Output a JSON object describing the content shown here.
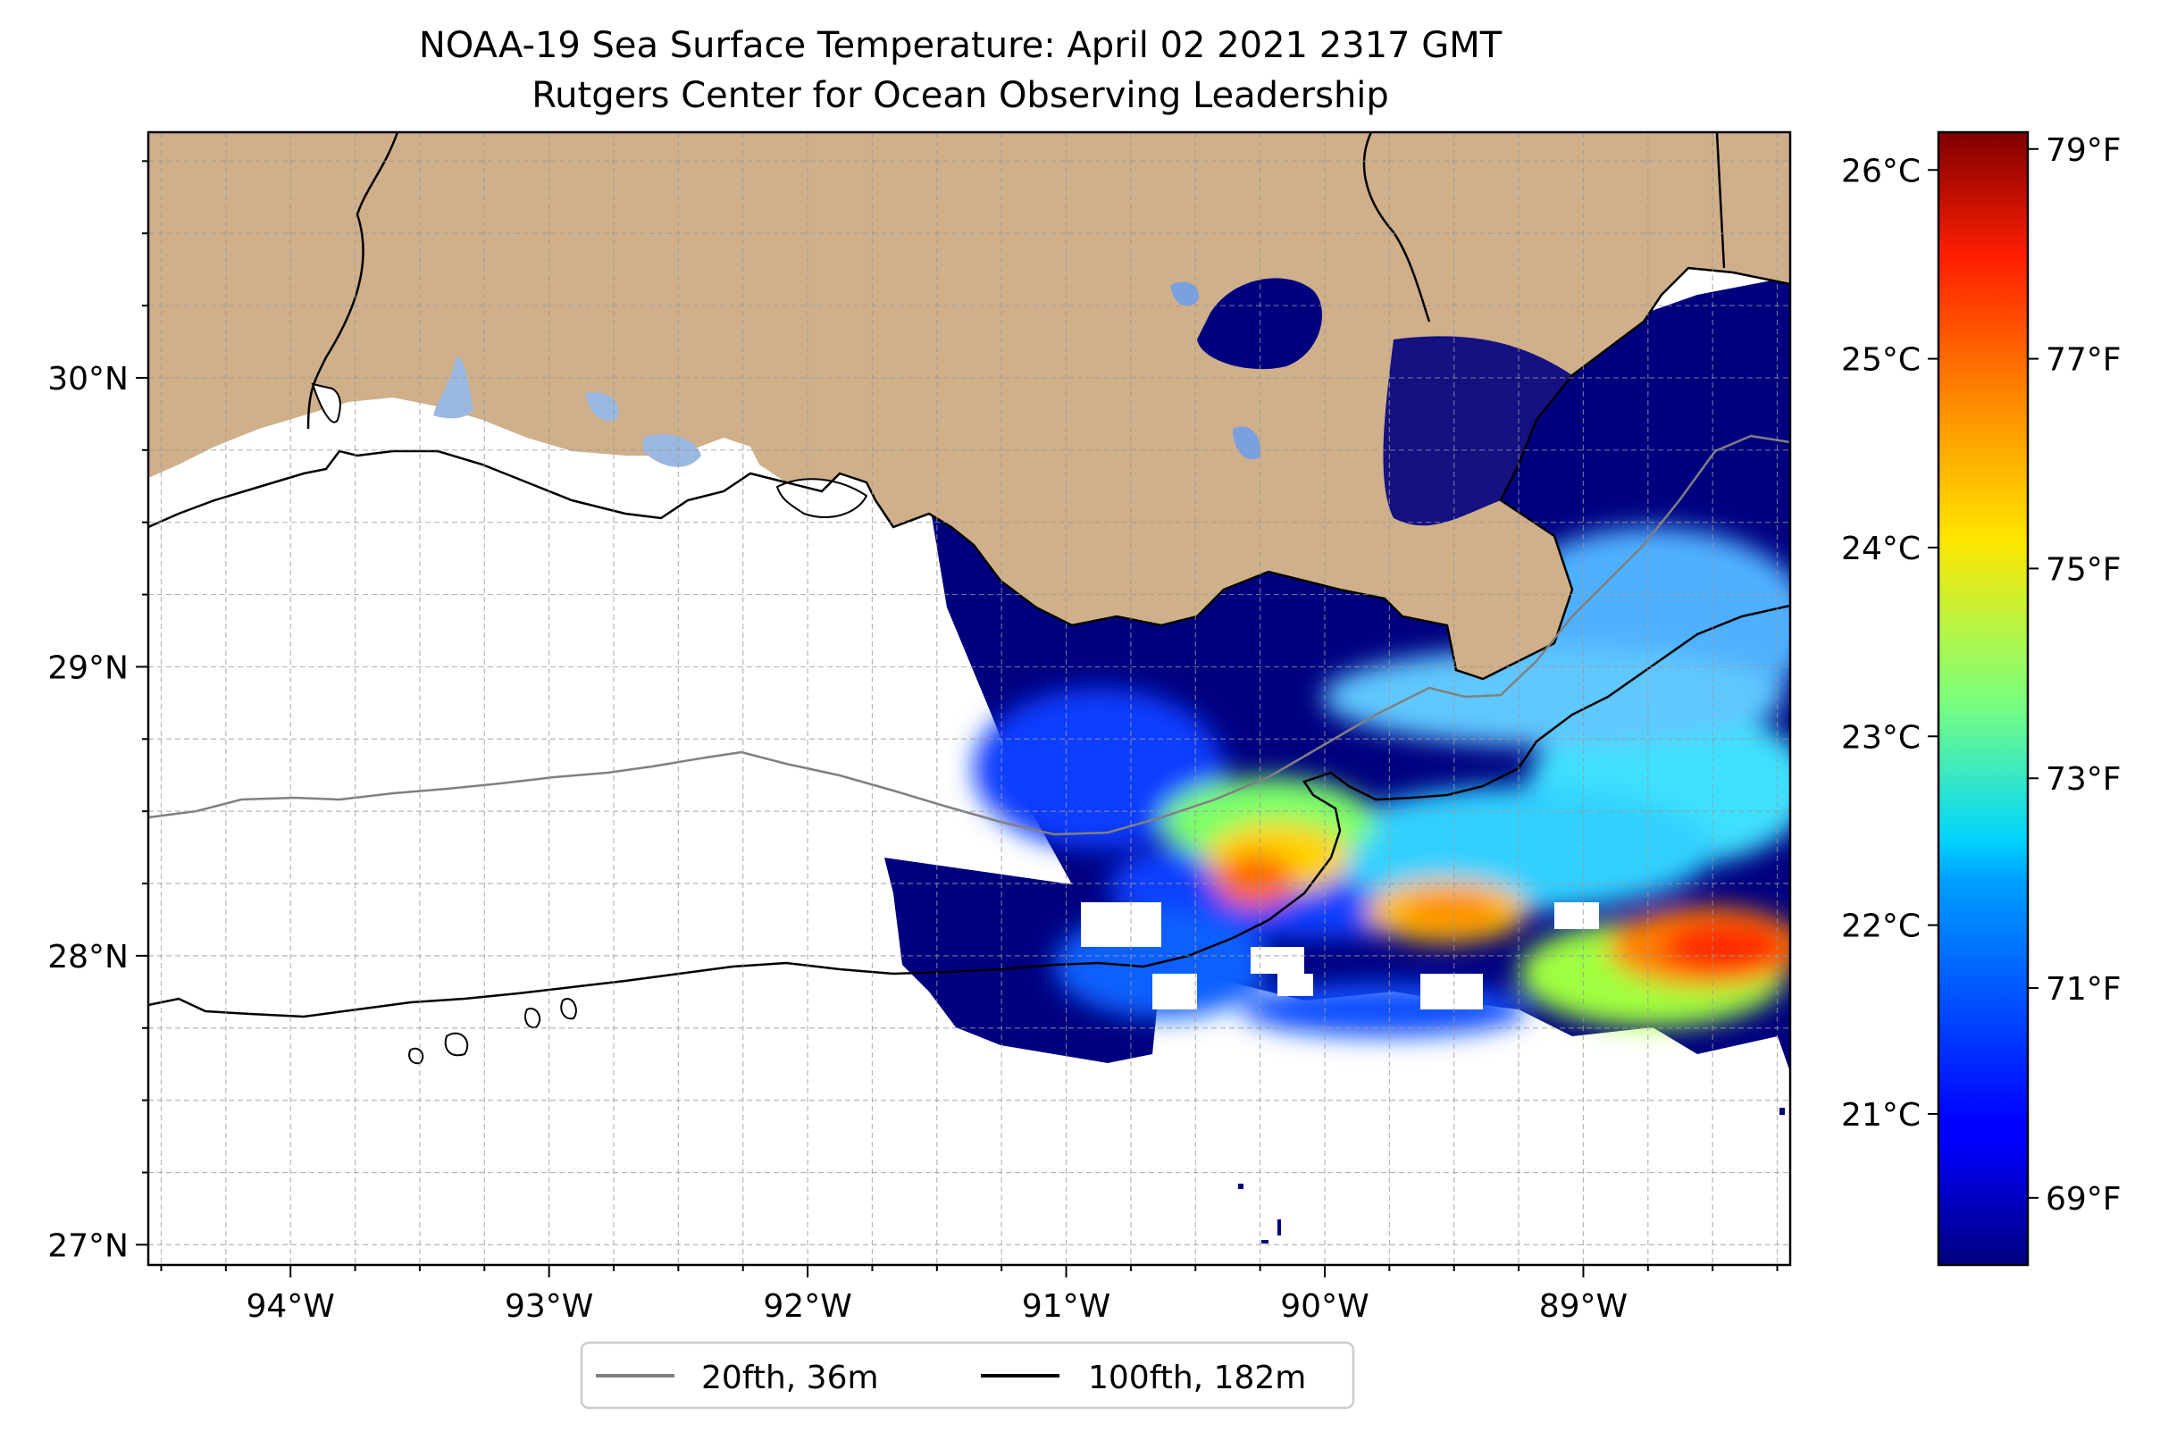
{
  "title": {
    "line1": "NOAA-19 Sea Surface Temperature: April 02 2021 2317 GMT",
    "line2": "Rutgers Center for Ocean Observing Leadership"
  },
  "map": {
    "lon_range": [
      -94.55,
      -88.2
    ],
    "lat_range": [
      26.93,
      30.85
    ],
    "lon_ticks": [
      {
        "value": -94,
        "label": "94°W"
      },
      {
        "value": -93,
        "label": "93°W"
      },
      {
        "value": -92,
        "label": "92°W"
      },
      {
        "value": -91,
        "label": "91°W"
      },
      {
        "value": -90,
        "label": "90°W"
      },
      {
        "value": -89,
        "label": "89°W"
      }
    ],
    "lat_ticks": [
      {
        "value": 27,
        "label": "27°N"
      },
      {
        "value": 28,
        "label": "28°N"
      },
      {
        "value": 29,
        "label": "29°N"
      },
      {
        "value": 30,
        "label": "30°N"
      }
    ],
    "gridlines": "dashed",
    "colors": {
      "land": "#cfb08a",
      "lakes": "#9bb8e0",
      "ocean_nodata": "#ffffff",
      "contour_20fth": "#808080",
      "contour_100fth": "#000000"
    }
  },
  "colorbar": {
    "colormap": "jet",
    "celsius_ticks": [
      {
        "value": 21,
        "label": "21°C"
      },
      {
        "value": 22,
        "label": "22°C"
      },
      {
        "value": 23,
        "label": "23°C"
      },
      {
        "value": 24,
        "label": "24°C"
      },
      {
        "value": 25,
        "label": "25°C"
      },
      {
        "value": 26,
        "label": "26°C"
      }
    ],
    "fahrenheit_ticks": [
      {
        "value": 69,
        "label": "69°F"
      },
      {
        "value": 71,
        "label": "71°F"
      },
      {
        "value": 73,
        "label": "73°F"
      },
      {
        "value": 75,
        "label": "75°F"
      },
      {
        "value": 77,
        "label": "77°F"
      },
      {
        "value": 79,
        "label": "79°F"
      }
    ],
    "range_celsius": [
      20.2,
      26.2
    ]
  },
  "legend": {
    "placement": "bottom-center",
    "items": [
      {
        "label": "20fth, 36m",
        "color": "#808080"
      },
      {
        "label": "100fth, 182m",
        "color": "#000000"
      }
    ]
  }
}
